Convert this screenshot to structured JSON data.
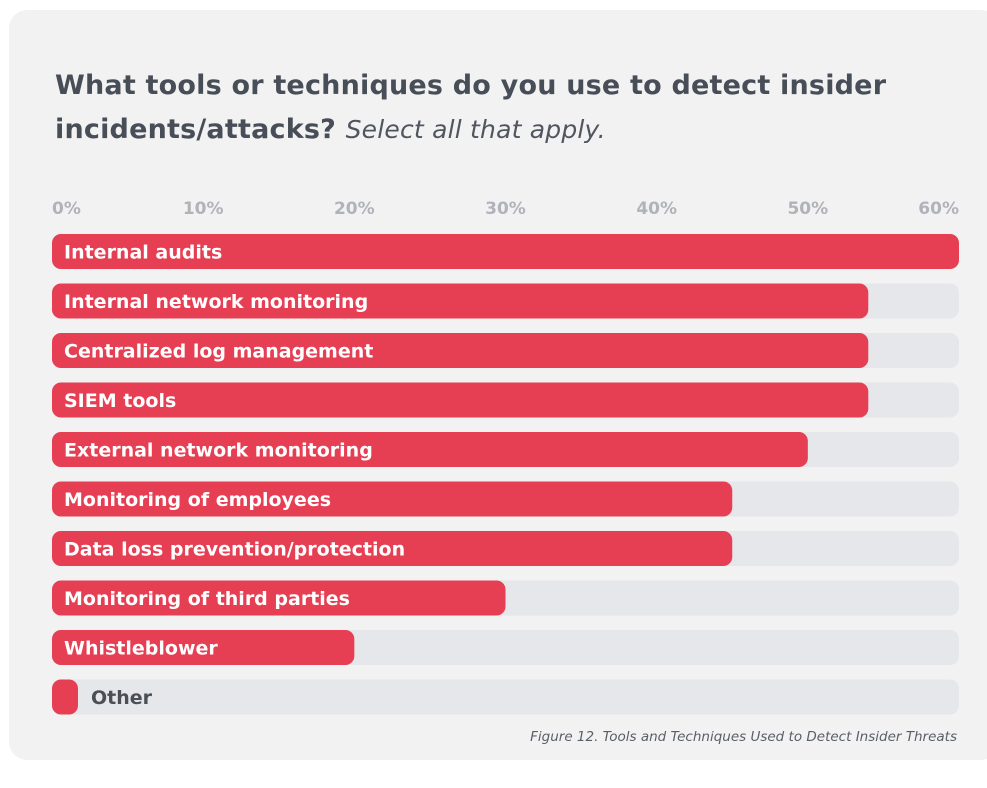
{
  "title": {
    "main": "What tools or techniques do you use to detect insider incidents/attacks?",
    "subtitle": "Select all that apply."
  },
  "caption": "Figure 12. Tools and Techniques Used to Detect Insider Threats",
  "colors": {
    "bar": "#e63e52",
    "track": "#e6e7ea",
    "card": "#f2f2f3"
  },
  "chart_data": {
    "type": "bar",
    "orientation": "horizontal",
    "xlim": [
      0,
      60
    ],
    "ticks": [
      "0%",
      "10%",
      "20%",
      "30%",
      "40%",
      "50%",
      "60%"
    ],
    "tick_values": [
      0,
      10,
      20,
      30,
      40,
      50,
      60
    ],
    "categories": [
      "Internal audits",
      "Internal network monitoring",
      "Centralized log management",
      "SIEM tools",
      "External network monitoring",
      "Monitoring of employees",
      "Data loss prevention/protection",
      "Monitoring of third parties",
      "Whistleblower",
      "Other"
    ],
    "values": [
      60,
      54,
      54,
      54,
      50,
      45,
      45,
      30,
      20,
      1
    ],
    "grid": false,
    "legend": "none"
  }
}
